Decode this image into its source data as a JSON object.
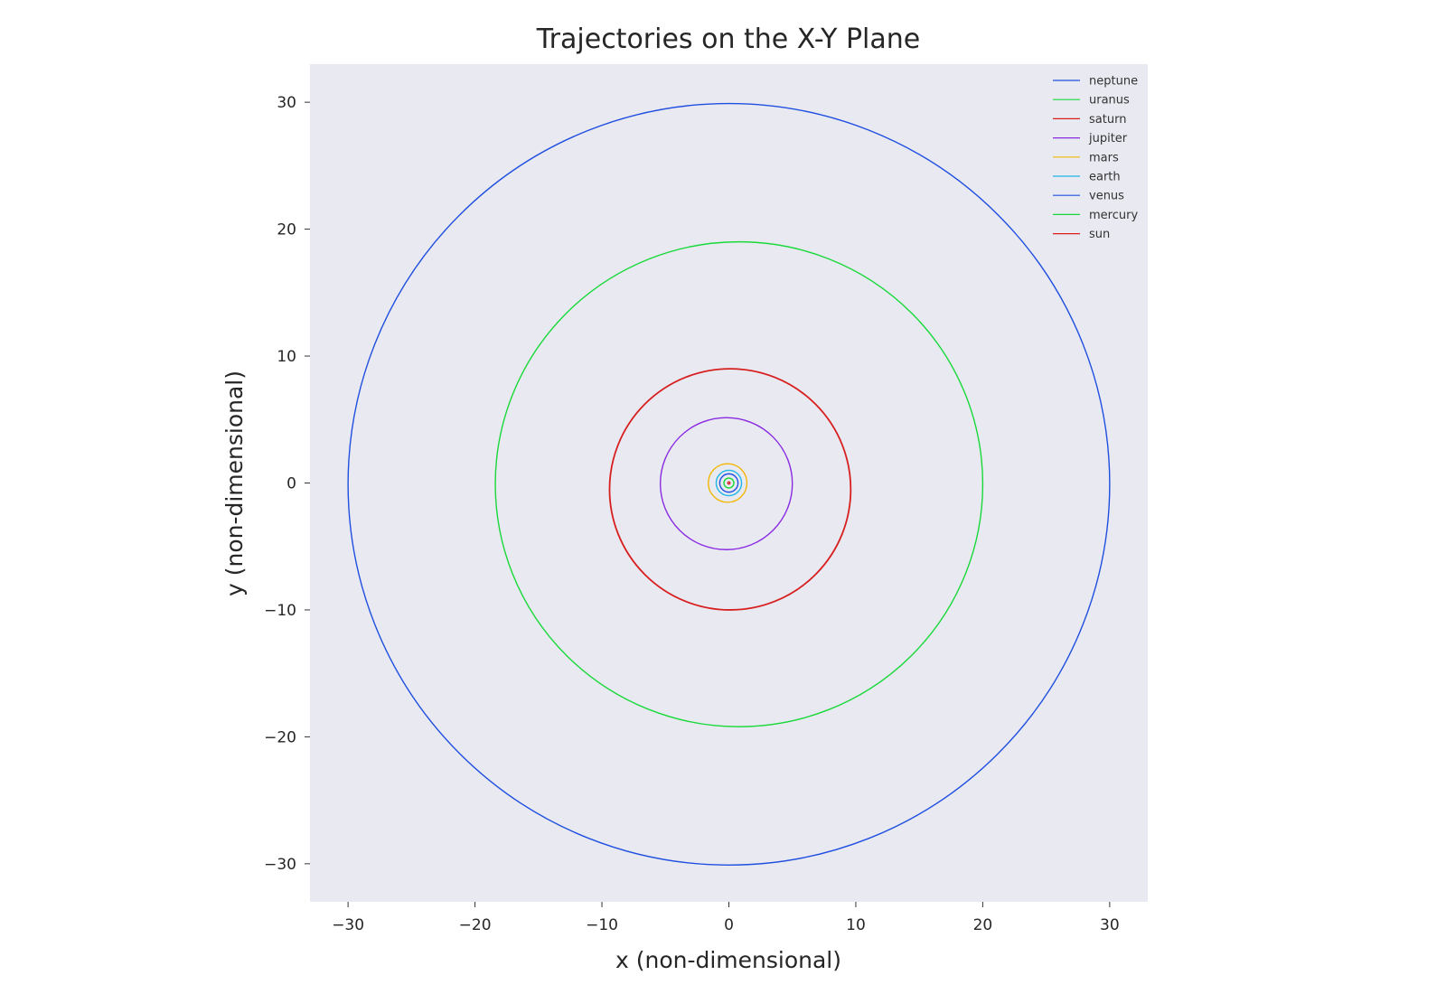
{
  "chart_data": {
    "type": "line",
    "title": "Trajectories on the X-Y Plane",
    "xlabel": "x (non-dimensional)",
    "ylabel": "y (non-dimensional)",
    "xlim": [
      -33,
      33
    ],
    "ylim": [
      -33,
      33
    ],
    "xticks": [
      -30,
      -20,
      -10,
      0,
      10,
      20,
      30
    ],
    "yticks": [
      -30,
      -20,
      -10,
      0,
      10,
      20,
      30
    ],
    "xtick_labels": [
      "−30",
      "−20",
      "−10",
      "0",
      "10",
      "20",
      "30"
    ],
    "ytick_labels": [
      "−30",
      "−20",
      "−10",
      "0",
      "10",
      "20",
      "30"
    ],
    "grid": false,
    "background": "#e9e9f1",
    "legend_position": "top-right",
    "series": [
      {
        "name": "neptune",
        "color": "#1f4fe0",
        "orbit": {
          "cx": 0.0,
          "cy": -0.1,
          "rx": 30.0,
          "ry": 30.0
        }
      },
      {
        "name": "uranus",
        "color": "#19d93a",
        "orbit": {
          "cx": 0.8,
          "cy": -0.1,
          "rx": 19.2,
          "ry": 19.1
        }
      },
      {
        "name": "saturn",
        "color": "#d81f1f",
        "orbit": {
          "cx": 0.1,
          "cy": -0.5,
          "rx": 9.5,
          "ry": 9.5
        }
      },
      {
        "name": "jupiter",
        "color": "#8a2be2",
        "orbit": {
          "cx": -0.2,
          "cy": -0.05,
          "rx": 5.2,
          "ry": 5.2
        }
      },
      {
        "name": "mars",
        "color": "#f2b705",
        "orbit": {
          "cx": -0.1,
          "cy": 0.0,
          "rx": 1.52,
          "ry": 1.52
        }
      },
      {
        "name": "earth",
        "color": "#1fb6e6",
        "orbit": {
          "cx": 0.0,
          "cy": 0.0,
          "rx": 1.0,
          "ry": 1.0
        }
      },
      {
        "name": "venus",
        "color": "#1f4fe0",
        "orbit": {
          "cx": 0.0,
          "cy": 0.0,
          "rx": 0.72,
          "ry": 0.72
        }
      },
      {
        "name": "mercury",
        "color": "#19d93a",
        "orbit": {
          "cx": 0.0,
          "cy": 0.0,
          "rx": 0.39,
          "ry": 0.39
        }
      },
      {
        "name": "sun",
        "color": "#d81f1f",
        "orbit": {
          "cx": 0.0,
          "cy": 0.0,
          "rx": 0.01,
          "ry": 0.01
        }
      }
    ]
  }
}
